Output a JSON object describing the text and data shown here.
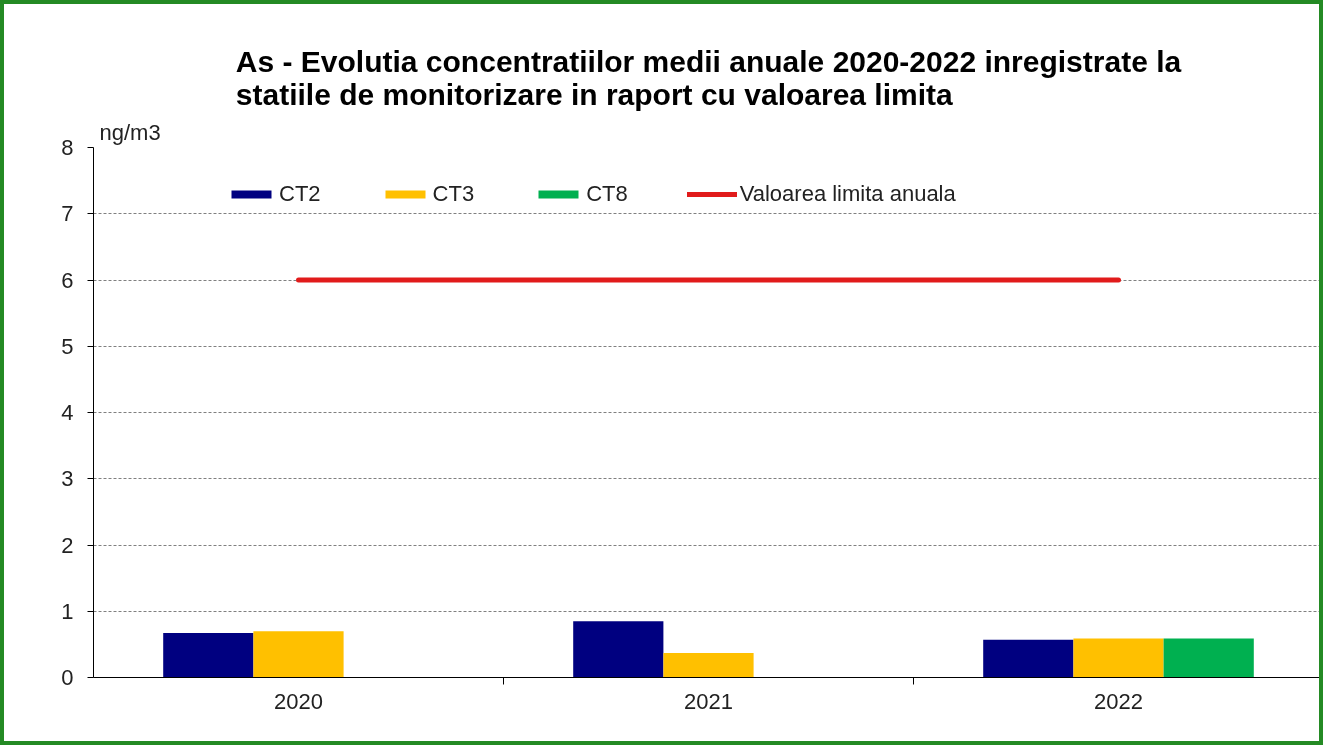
{
  "chart_data": {
    "type": "bar",
    "title": "As - Evolutia concentratiilor medii anuale 2020-2022 inregistrate la statiile de monitorizare in raport cu valoarea limita",
    "ylabel": "ng/m3",
    "categories": [
      "2020",
      "2021",
      "2022"
    ],
    "series": [
      {
        "name": "CT2",
        "color": "#000080",
        "values": [
          0.67,
          0.85,
          0.57
        ]
      },
      {
        "name": "CT3",
        "color": "#ffc000",
        "values": [
          0.7,
          0.37,
          0.59
        ]
      },
      {
        "name": "CT8",
        "color": "#00b050",
        "values": [
          null,
          null,
          0.59
        ]
      },
      {
        "name": "Valoarea limita anuala",
        "type": "line",
        "color": "#e11b1b",
        "values": [
          6,
          6,
          6
        ]
      }
    ],
    "ylim": [
      0,
      8
    ],
    "yticks": [
      0,
      1,
      2,
      3,
      4,
      5,
      6,
      7,
      8
    ],
    "grid": "y",
    "legend": "top"
  }
}
